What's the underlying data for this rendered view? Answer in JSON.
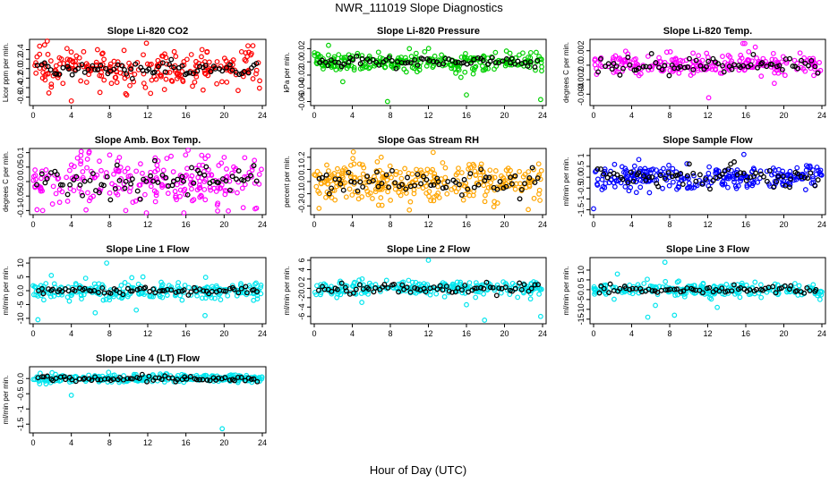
{
  "figure": {
    "title": "NWR_111019  Slope Diagnostics",
    "xlabel": "Hour of Day (UTC)"
  },
  "chart_data": [
    {
      "type": "scatter",
      "title": "Slope Li-820 CO2",
      "ylabel": "Licor ppm per min.",
      "xlim": [
        0,
        24
      ],
      "ylim": [
        -0.72,
        0.56
      ],
      "yticks": [
        -0.6,
        -0.4,
        -0.2,
        0.0,
        0.2,
        0.4
      ],
      "xticks": [
        0,
        4,
        8,
        12,
        16,
        20,
        24
      ],
      "color": "#ff0000",
      "spread": 0.2,
      "mean_spread": 0.09,
      "outliers": [
        [
          4.0,
          -0.68
        ],
        [
          1.2,
          0.5
        ],
        [
          12.3,
          -0.52
        ],
        [
          17.8,
          -0.45
        ],
        [
          22.5,
          0.48
        ],
        [
          7.0,
          -0.5
        ]
      ],
      "series": [
        {
          "name": "individual",
          "n": 240
        },
        {
          "name": "mean",
          "n": 70
        }
      ]
    },
    {
      "type": "scatter",
      "title": "Slope Li-820 Pressure",
      "ylabel": "kPa per min.",
      "xlim": [
        0,
        24
      ],
      "ylim": [
        -0.062,
        0.03
      ],
      "yticks": [
        -0.06,
        -0.04,
        -0.02,
        0.0,
        0.02
      ],
      "xticks": [
        0,
        4,
        8,
        12,
        16,
        20,
        24
      ],
      "color": "#00d000",
      "spread": 0.007,
      "mean_spread": 0.004,
      "outliers": [
        [
          7.7,
          -0.06
        ],
        [
          16.0,
          -0.05
        ],
        [
          23.8,
          -0.057
        ],
        [
          1.5,
          0.025
        ],
        [
          3.0,
          -0.03
        ],
        [
          10.0,
          0.02
        ]
      ],
      "series": [
        {
          "name": "individual",
          "n": 260
        },
        {
          "name": "mean",
          "n": 70
        }
      ]
    },
    {
      "type": "scatter",
      "title": "Slope Li-820 Temp.",
      "ylabel": "degrees C per min.",
      "xlim": [
        0,
        24
      ],
      "ylim": [
        -0.0052,
        0.0032
      ],
      "yticks": [
        -0.004,
        -0.002,
        0.0,
        0.002
      ],
      "xticks": [
        0,
        4,
        8,
        12,
        16,
        20,
        24
      ],
      "color": "#ff00ff",
      "spread": 0.0007,
      "mean_spread": 0.0005,
      "outliers": [
        [
          12.1,
          -0.0045
        ],
        [
          15.7,
          0.003
        ],
        [
          15.9,
          0.003
        ],
        [
          17.0,
          0.0025
        ],
        [
          7.7,
          0.0018
        ],
        [
          19.0,
          -0.0025
        ]
      ],
      "series": [
        {
          "name": "individual",
          "n": 230
        },
        {
          "name": "mean",
          "n": 70
        }
      ]
    },
    {
      "type": "scatter",
      "title": "Slope Amb. Box Temp.",
      "ylabel": "degrees C per min.",
      "xlim": [
        0,
        24
      ],
      "ylim": [
        -0.105,
        0.105
      ],
      "yticks": [
        -0.1,
        -0.05,
        0.0,
        0.05,
        0.1
      ],
      "xticks": [
        0,
        4,
        8,
        12,
        16,
        20,
        24
      ],
      "color": "#ff00ff",
      "spread": 0.045,
      "mean_spread": 0.025,
      "outliers": [
        [
          1.0,
          -0.1
        ],
        [
          9.7,
          -0.1
        ],
        [
          22.0,
          -0.09
        ],
        [
          5.0,
          0.09
        ],
        [
          14.0,
          0.08
        ]
      ],
      "series": [
        {
          "name": "individual",
          "n": 240
        },
        {
          "name": "mean",
          "n": 70
        }
      ]
    },
    {
      "type": "scatter",
      "title": "Slope Gas Stream RH",
      "ylabel": "percent per min.",
      "xlim": [
        0,
        24
      ],
      "ylim": [
        -0.25,
        0.25
      ],
      "yticks": [
        -0.2,
        -0.1,
        0.0,
        0.1,
        0.2
      ],
      "xticks": [
        0,
        4,
        8,
        12,
        16,
        20,
        24
      ],
      "color": "#ffa500",
      "spread": 0.08,
      "mean_spread": 0.05,
      "outliers": [
        [
          12.5,
          0.24
        ],
        [
          0.5,
          -0.22
        ],
        [
          22.5,
          -0.23
        ]
      ],
      "series": [
        {
          "name": "individual",
          "n": 300
        },
        {
          "name": "mean",
          "n": 70
        }
      ]
    },
    {
      "type": "scatter",
      "title": "Slope Sample Flow",
      "ylabel": "ml/min per min.",
      "xlim": [
        0,
        24
      ],
      "ylim": [
        -1.6,
        1.2
      ],
      "yticks": [
        -1.5,
        -1.0,
        -0.5,
        0.0,
        0.5,
        1.0
      ],
      "xticks": [
        0,
        4,
        8,
        12,
        16,
        20,
        24
      ],
      "color": "#0000ff",
      "spread": 0.28,
      "mean_spread": 0.2,
      "outliers": [
        [
          0.0,
          -1.45
        ],
        [
          15.8,
          1.05
        ],
        [
          4.5,
          -0.7
        ]
      ],
      "series": [
        {
          "name": "individual",
          "n": 260
        },
        {
          "name": "mean",
          "n": 70
        }
      ]
    },
    {
      "type": "scatter",
      "title": "Slope Line 1 Flow",
      "ylabel": "ml/min per min.",
      "xlim": [
        0,
        24
      ],
      "ylim": [
        -11,
        11
      ],
      "yticks": [
        -10,
        -5,
        0,
        5,
        10
      ],
      "xticks": [
        0,
        4,
        8,
        12,
        16,
        20,
        24
      ],
      "color": "#00e5ee",
      "spread": 1.5,
      "mean_spread": 0.6,
      "outliers": [
        [
          7.7,
          10.0
        ],
        [
          5.5,
          4.5
        ],
        [
          11.5,
          5.0
        ],
        [
          10.8,
          -7.0
        ],
        [
          6.5,
          -8.0
        ],
        [
          0.5,
          -10.5
        ],
        [
          18.0,
          -9.0
        ]
      ],
      "series": [
        {
          "name": "individual",
          "n": 240
        },
        {
          "name": "mean",
          "n": 70
        }
      ]
    },
    {
      "type": "scatter",
      "title": "Slope Line 2 Flow",
      "ylabel": "ml/min per min.",
      "xlim": [
        0,
        24
      ],
      "ylim": [
        -7,
        6
      ],
      "yticks": [
        -6,
        -4,
        -2,
        0,
        2,
        4,
        6
      ],
      "xticks": [
        0,
        4,
        8,
        12,
        16,
        20,
        24
      ],
      "color": "#00e5ee",
      "spread": 0.8,
      "mean_spread": 0.6,
      "outliers": [
        [
          12.0,
          6.0
        ],
        [
          17.9,
          -6.8
        ],
        [
          23.8,
          -6.0
        ],
        [
          16.0,
          -3.5
        ],
        [
          5.0,
          -3.0
        ]
      ],
      "series": [
        {
          "name": "individual",
          "n": 240
        },
        {
          "name": "mean",
          "n": 70
        }
      ]
    },
    {
      "type": "scatter",
      "title": "Slope Line 3 Flow",
      "ylabel": "ml/min per min.",
      "xlim": [
        0,
        24
      ],
      "ylim": [
        -16,
        15
      ],
      "yticks": [
        -15,
        -10,
        -5,
        0,
        5,
        10
      ],
      "xticks": [
        0,
        4,
        8,
        12,
        16,
        20,
        24
      ],
      "color": "#00e5ee",
      "spread": 1.6,
      "mean_spread": 1.0,
      "outliers": [
        [
          7.5,
          14.0
        ],
        [
          5.7,
          -14.0
        ],
        [
          6.5,
          -8.0
        ],
        [
          13.0,
          -9.0
        ],
        [
          8.5,
          -13.0
        ],
        [
          2.5,
          8.0
        ],
        [
          23.8,
          -5.0
        ]
      ],
      "series": [
        {
          "name": "individual",
          "n": 240
        },
        {
          "name": "mean",
          "n": 70
        }
      ]
    },
    {
      "type": "scatter",
      "title": "Slope Line 4 (LT) Flow",
      "ylabel": "ml/min per min.",
      "xlim": [
        0,
        24
      ],
      "ylim": [
        -1.7,
        0.3
      ],
      "yticks": [
        -1.5,
        -1.0,
        -0.5,
        0.0
      ],
      "xticks": [
        0,
        4,
        8,
        12,
        16,
        20,
        24
      ],
      "color": "#00e5ee",
      "spread": 0.06,
      "mean_spread": 0.05,
      "outliers": [
        [
          4.0,
          -0.55
        ],
        [
          19.8,
          -1.65
        ]
      ],
      "series": [
        {
          "name": "individual",
          "n": 280
        },
        {
          "name": "mean",
          "n": 70
        }
      ]
    }
  ]
}
